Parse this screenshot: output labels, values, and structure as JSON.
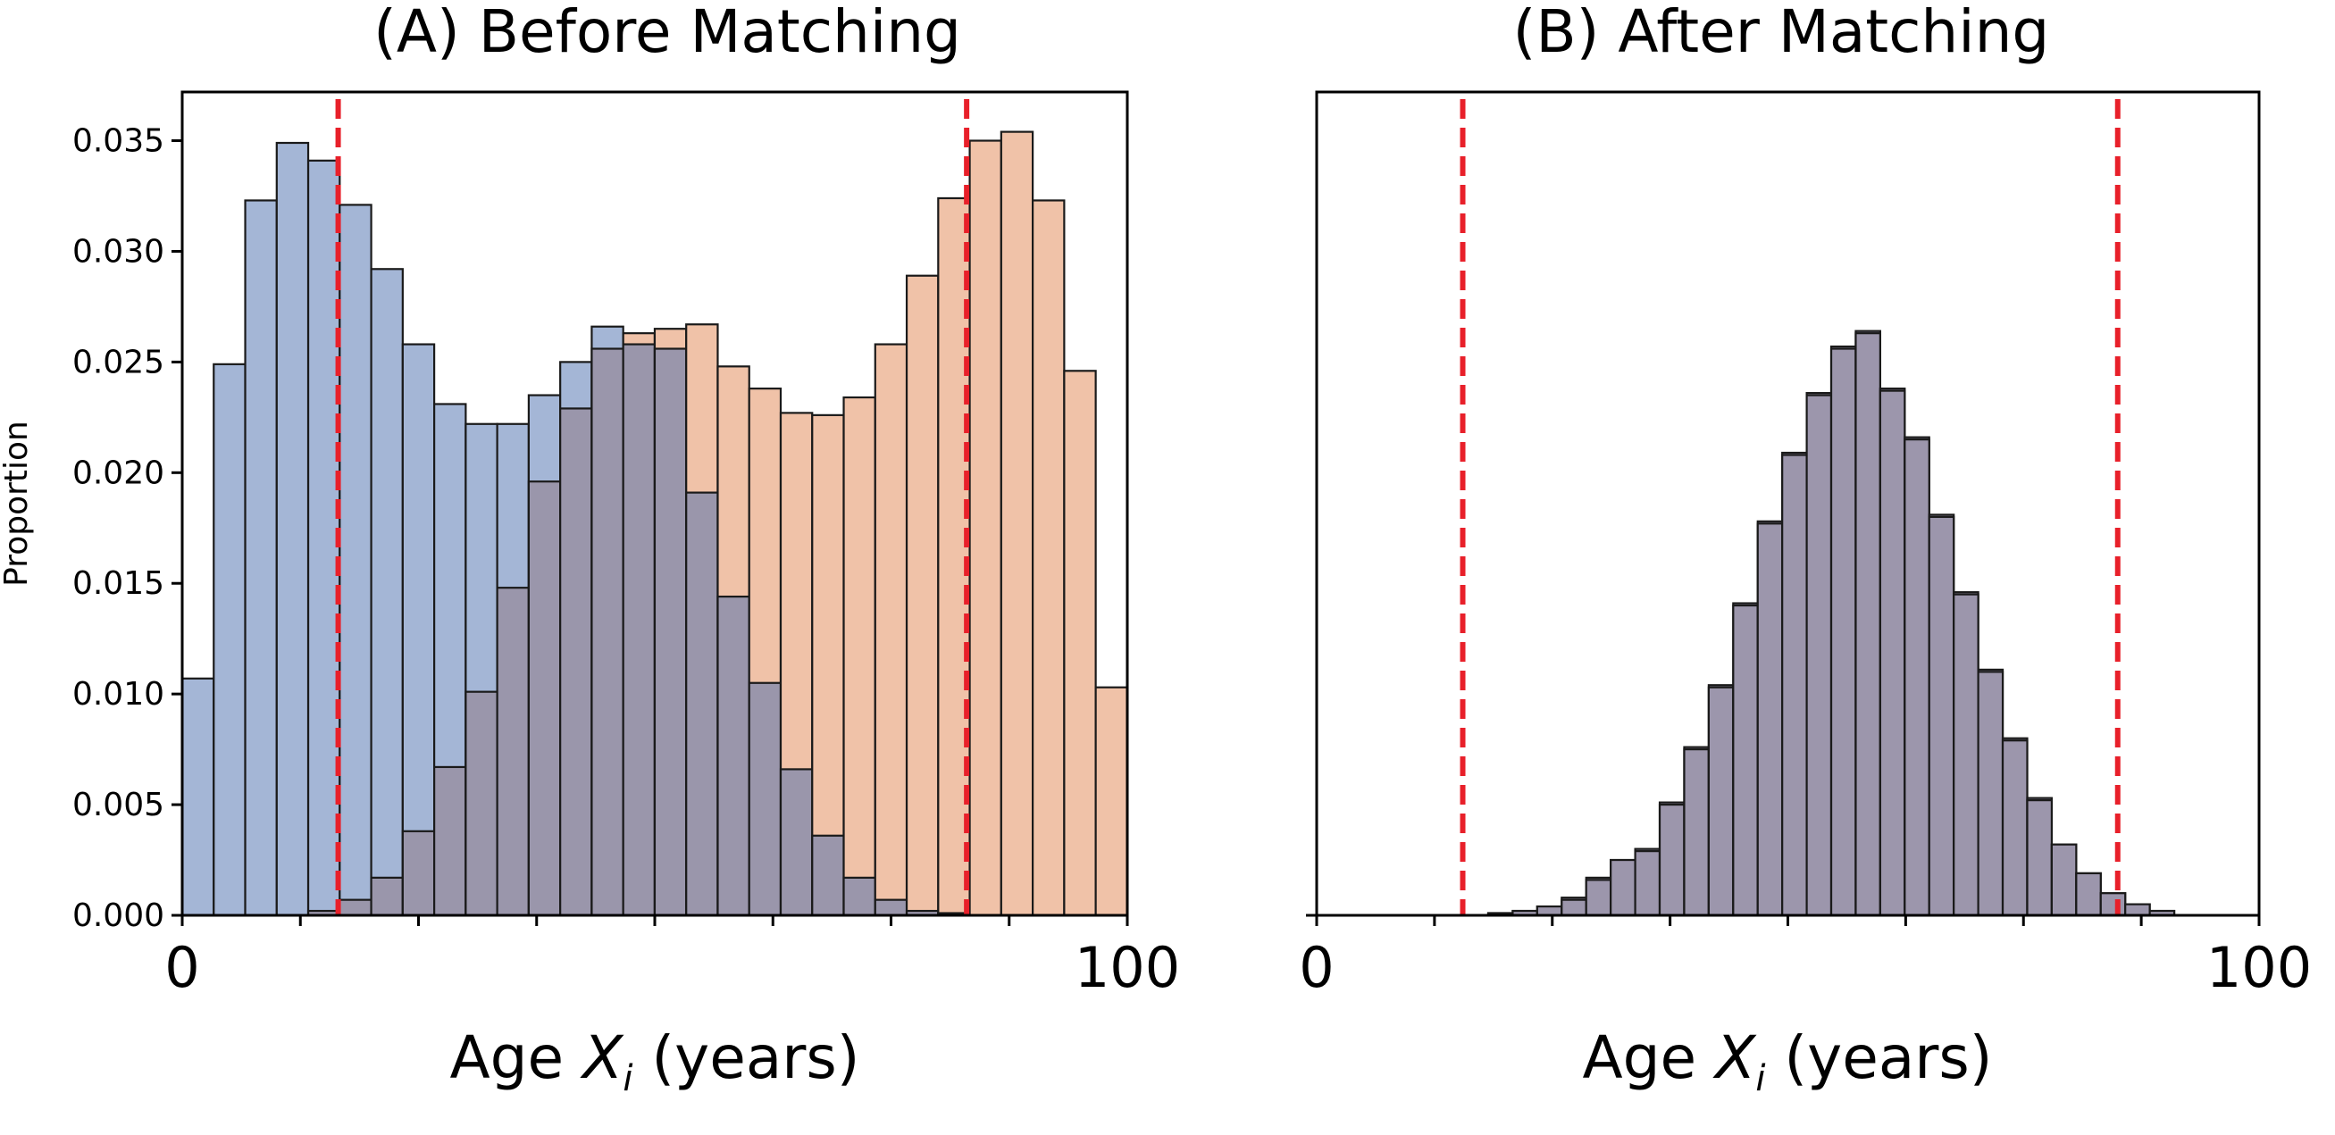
{
  "chart_data": [
    {
      "type": "histogram",
      "title": "(A) Before Matching",
      "ylabel": "Proportion",
      "xlabel_parts": [
        "Age ",
        "X",
        "i",
        " (years)"
      ],
      "xlim": [
        0,
        100
      ],
      "ylim": [
        0,
        0.0372
      ],
      "x_tick_labels": [
        {
          "value": 0,
          "label": "0"
        },
        {
          "value": 100,
          "label": "100"
        }
      ],
      "y_ticks": [
        0.0,
        0.005,
        0.01,
        0.015,
        0.02,
        0.025,
        0.03,
        0.035
      ],
      "y_tick_labels": [
        "0.000",
        "0.005",
        "0.010",
        "0.015",
        "0.020",
        "0.025",
        "0.030",
        "0.035"
      ],
      "bin_edges_start": 0,
      "bin_width": 3.333,
      "series": [
        {
          "color": "#a4b6d6",
          "values": [
            0.0107,
            0.0249,
            0.0323,
            0.0349,
            0.0341,
            0.0321,
            0.0292,
            0.0258,
            0.0231,
            0.0222,
            0.0222,
            0.0235,
            0.025,
            0.0266,
            0.0258,
            0.0256,
            0.0191,
            0.0144,
            0.0105,
            0.0066,
            0.0036,
            0.0017,
            0.0007,
            0.0002,
            0.0001,
            0.0,
            0.0,
            0.0,
            0.0,
            0.0
          ]
        },
        {
          "color": "#f0c2a8",
          "values": [
            0.0,
            0.0,
            0.0,
            0.0,
            0.0002,
            0.0007,
            0.0017,
            0.0038,
            0.0067,
            0.0101,
            0.0148,
            0.0196,
            0.0229,
            0.0256,
            0.0263,
            0.0265,
            0.0267,
            0.0248,
            0.0238,
            0.0227,
            0.0226,
            0.0234,
            0.0258,
            0.0289,
            0.0324,
            0.035,
            0.0354,
            0.0323,
            0.0246,
            0.0103
          ]
        }
      ],
      "vlines": [
        {
          "x": 16.5,
          "color": "#e8202a"
        },
        {
          "x": 83.0,
          "color": "#e8202a"
        }
      ]
    },
    {
      "type": "histogram",
      "title": "(B) After Matching",
      "xlabel_parts": [
        "Age ",
        "X",
        "i",
        " (years)"
      ],
      "xlim": [
        0,
        100
      ],
      "ylim": [
        0,
        0.0372
      ],
      "x_tick_labels": [
        {
          "value": 0,
          "label": "0"
        },
        {
          "value": 100,
          "label": "100"
        }
      ],
      "bin_edges_start": 0,
      "bin_width": 2.6,
      "series": [
        {
          "color": "#9c96ac",
          "values": [
            0.0,
            0.0,
            0.0,
            0.0,
            0.0,
            0.0,
            0.0,
            0.0001,
            0.0002,
            0.0004,
            0.0007,
            0.0016,
            0.0025,
            0.0029,
            0.005,
            0.0075,
            0.0104,
            0.014,
            0.0177,
            0.0208,
            0.0235,
            0.0256,
            0.0263,
            0.0237,
            0.0215,
            0.018,
            0.0145,
            0.011,
            0.0079,
            0.0052,
            0.0032,
            0.0019,
            0.001,
            0.0005,
            0.0002,
            0.0,
            0.0,
            0.0
          ]
        },
        {
          "color": "#9c96ac",
          "values": [
            0.0,
            0.0,
            0.0,
            0.0,
            0.0,
            0.0,
            0.0,
            0.0001,
            0.0002,
            0.0004,
            0.0008,
            0.0017,
            0.0025,
            0.003,
            0.0051,
            0.0076,
            0.0103,
            0.0141,
            0.0178,
            0.0209,
            0.0236,
            0.0257,
            0.0264,
            0.0238,
            0.0216,
            0.0181,
            0.0146,
            0.0111,
            0.008,
            0.0053,
            0.0032,
            0.0019,
            0.001,
            0.0005,
            0.0002,
            0.0,
            0.0,
            0.0
          ]
        }
      ],
      "vlines": [
        {
          "x": 15.5,
          "color": "#e8202a"
        },
        {
          "x": 85.0,
          "color": "#e8202a"
        }
      ]
    }
  ],
  "overlap_color": "#9a96ab"
}
